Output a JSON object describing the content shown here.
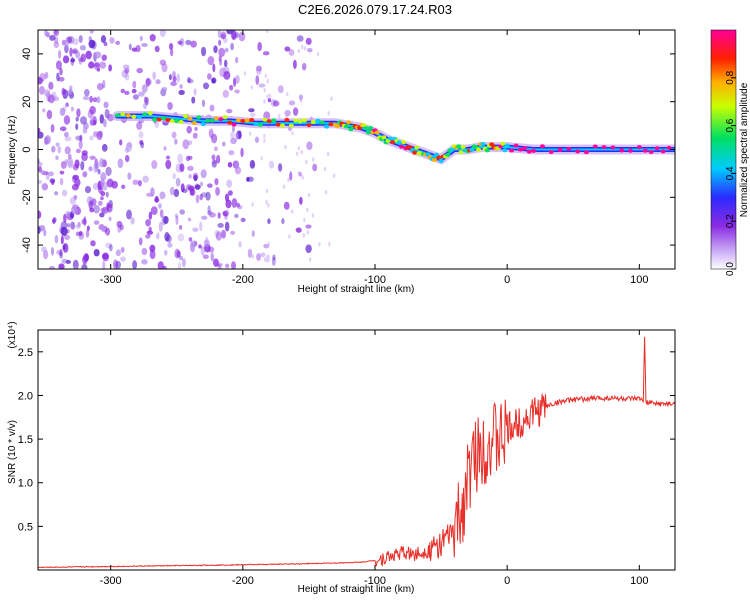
{
  "title": "C2E6.2026.079.17.24.R03",
  "chart_data": [
    {
      "type": "heatmap",
      "xlabel": "Height of straight line (km)",
      "ylabel": "Frequency (Hz)",
      "xlim": [
        -355,
        127
      ],
      "ylim": [
        -50,
        50
      ],
      "xticks": [
        -300,
        -200,
        -100,
        0,
        100
      ],
      "yticks": [
        -40,
        -20,
        0,
        20,
        40
      ],
      "colorbar": {
        "label": "Normalized spectral amplitude",
        "range": [
          0,
          1
        ],
        "ticks": [
          "0.0",
          "0.2",
          "0.4",
          "0.6",
          "0.8"
        ],
        "tick_values": [
          0.0,
          0.2,
          0.4,
          0.6,
          0.8
        ],
        "colormap": "rainbow (white→violet→blue→cyan→green→yellow→orange→red→magenta)"
      },
      "trace": {
        "description": "dominant Doppler frequency ridge",
        "x": [
          -295,
          -270,
          -250,
          -230,
          -210,
          -190,
          -170,
          -150,
          -130,
          -120,
          -110,
          -100,
          -90,
          -80,
          -70,
          -60,
          -50,
          -40,
          -30,
          -20,
          -10,
          0,
          20,
          60,
          100,
          127
        ],
        "y": [
          14,
          14,
          13,
          12,
          12,
          11,
          11,
          11,
          11,
          10,
          9,
          7,
          4,
          2,
          0,
          -2,
          -4,
          0,
          0,
          1,
          1,
          1,
          0,
          0,
          0,
          0
        ]
      },
      "noise_region_x": [
        -355,
        -200
      ]
    },
    {
      "type": "line",
      "xlabel": "Height of straight line (km)",
      "ylabel": "SNR (10 * v/v)",
      "multiplier": "(x10⁴)",
      "xlim": [
        -355,
        127
      ],
      "ylim": [
        0,
        2.75
      ],
      "xticks": [
        -300,
        -200,
        -100,
        0,
        100
      ],
      "yticks": [
        "0.5",
        "1.0",
        "1.5",
        "2.0",
        "2.5"
      ],
      "ytick_values": [
        0.5,
        1.0,
        1.5,
        2.0,
        2.5
      ],
      "series": [
        {
          "color": "#e8302a",
          "x": [
            -355,
            -300,
            -250,
            -200,
            -160,
            -130,
            -110,
            -100,
            -90,
            -80,
            -70,
            -60,
            -50,
            -40,
            -35,
            -30,
            -25,
            -20,
            -15,
            -10,
            -5,
            0,
            5,
            10,
            15,
            20,
            30,
            40,
            50,
            60,
            70,
            80,
            90,
            100,
            103,
            104,
            105,
            110,
            120,
            127
          ],
          "y": [
            0.03,
            0.04,
            0.05,
            0.06,
            0.07,
            0.08,
            0.09,
            0.11,
            0.15,
            0.2,
            0.18,
            0.22,
            0.3,
            0.45,
            0.65,
            1.0,
            1.3,
            1.4,
            1.45,
            1.5,
            1.48,
            1.6,
            1.65,
            1.7,
            1.75,
            1.8,
            1.88,
            1.93,
            1.95,
            1.96,
            1.97,
            1.97,
            1.96,
            1.96,
            1.94,
            2.7,
            1.92,
            1.91,
            1.9,
            1.9
          ]
        }
      ]
    }
  ]
}
